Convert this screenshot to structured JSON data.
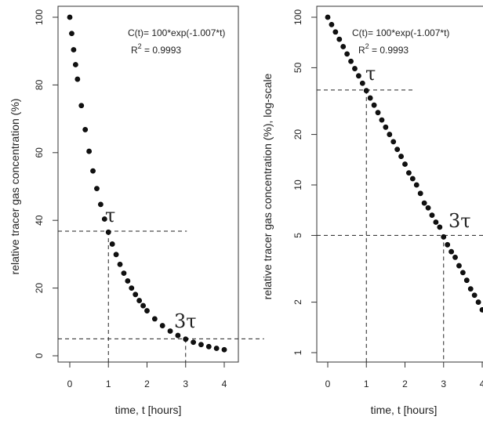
{
  "chart_data": [
    {
      "type": "scatter",
      "title": "",
      "xlabel": "time, t [hours]",
      "ylabel": "relative tracer gas concentration (%)",
      "xlim": [
        0,
        4
      ],
      "ylim": [
        0,
        100
      ],
      "yscale": "linear",
      "grid": false,
      "x_ticks": [
        0,
        1,
        2,
        3,
        4
      ],
      "y_ticks": [
        0,
        20,
        40,
        60,
        80,
        100
      ],
      "x_tick_labels": [
        "0",
        "1",
        "2",
        "3",
        "4"
      ],
      "y_tick_labels": [
        "0",
        "20",
        "40",
        "60",
        "80",
        "100"
      ],
      "equation": "C(t)= 100*exp(-1.007*t)",
      "r2_label": "R",
      "r2_sup": "2",
      "r2_value": " = 0.9993",
      "tau_label": "τ",
      "three_tau_label": "3τ",
      "fit": {
        "amplitude": 100,
        "rate": 1.007,
        "r2": 0.9993
      },
      "reference_lines": [
        {
          "t": 1,
          "concentration": 36.8
        },
        {
          "t": 3,
          "concentration": 5
        }
      ],
      "series": [
        {
          "x": [
            0,
            0.05,
            0.1,
            0.15,
            0.2,
            0.3,
            0.4,
            0.5,
            0.6,
            0.7,
            0.8,
            0.9,
            1.0,
            1.1,
            1.2,
            1.3,
            1.4,
            1.5,
            1.6,
            1.7,
            1.8,
            1.9,
            2.0,
            2.2,
            2.4,
            2.6,
            2.8,
            3.0,
            3.2,
            3.4,
            3.6,
            3.8,
            4.0
          ],
          "y": [
            100,
            95.2,
            90.4,
            86,
            81.7,
            73.9,
            66.8,
            60.4,
            54.6,
            49.4,
            44.7,
            40.4,
            36.5,
            33,
            29.9,
            27,
            24.4,
            22.1,
            20,
            18.1,
            16.3,
            14.8,
            13.3,
            10.9,
            8.9,
            7.3,
            6,
            4.9,
            4,
            3.3,
            2.7,
            2.2,
            1.8
          ]
        }
      ]
    },
    {
      "type": "scatter",
      "title": "",
      "xlabel": "time, t [hours]",
      "ylabel": "relative tracer gas concentration (%), log-scale",
      "xlim": [
        0,
        4
      ],
      "ylim": [
        1,
        100
      ],
      "yscale": "log",
      "grid": false,
      "x_ticks": [
        0,
        1,
        2,
        3,
        4
      ],
      "y_ticks": [
        1,
        2,
        5,
        10,
        20,
        50,
        100
      ],
      "x_tick_labels": [
        "0",
        "1",
        "2",
        "3",
        "4"
      ],
      "y_tick_labels": [
        "1",
        "2",
        "5",
        "10",
        "20",
        "50",
        "100"
      ],
      "equation": "C(t)= 100*exp(-1.007*t)",
      "r2_label": "R",
      "r2_sup": "2",
      "r2_value": " = 0.9993",
      "tau_label": "τ",
      "three_tau_label": "3τ",
      "fit": {
        "amplitude": 100,
        "rate": 1.007,
        "r2": 0.9993
      },
      "reference_lines": [
        {
          "t": 1,
          "concentration": 36.8
        },
        {
          "t": 3,
          "concentration": 5
        }
      ],
      "series": [
        {
          "x": [
            0,
            0.1,
            0.2,
            0.3,
            0.4,
            0.5,
            0.6,
            0.7,
            0.8,
            0.9,
            1.0,
            1.1,
            1.2,
            1.3,
            1.4,
            1.5,
            1.6,
            1.7,
            1.8,
            1.9,
            2.0,
            2.1,
            2.2,
            2.3,
            2.4,
            2.5,
            2.6,
            2.7,
            2.8,
            2.9,
            3.0,
            3.1,
            3.2,
            3.3,
            3.4,
            3.5,
            3.6,
            3.7,
            3.8,
            3.9,
            4.0
          ],
          "y": [
            100,
            90.4,
            81.7,
            73.9,
            66.8,
            60.4,
            54.6,
            49.4,
            44.7,
            40.4,
            36.5,
            33,
            29.9,
            27,
            24.4,
            22.1,
            20,
            18.1,
            16.3,
            14.8,
            13.3,
            11.8,
            10.9,
            10,
            8.9,
            7.8,
            7.3,
            6.6,
            6,
            5.6,
            4.9,
            4.4,
            4,
            3.7,
            3.3,
            3,
            2.7,
            2.4,
            2.2,
            2,
            1.8
          ]
        }
      ]
    }
  ]
}
